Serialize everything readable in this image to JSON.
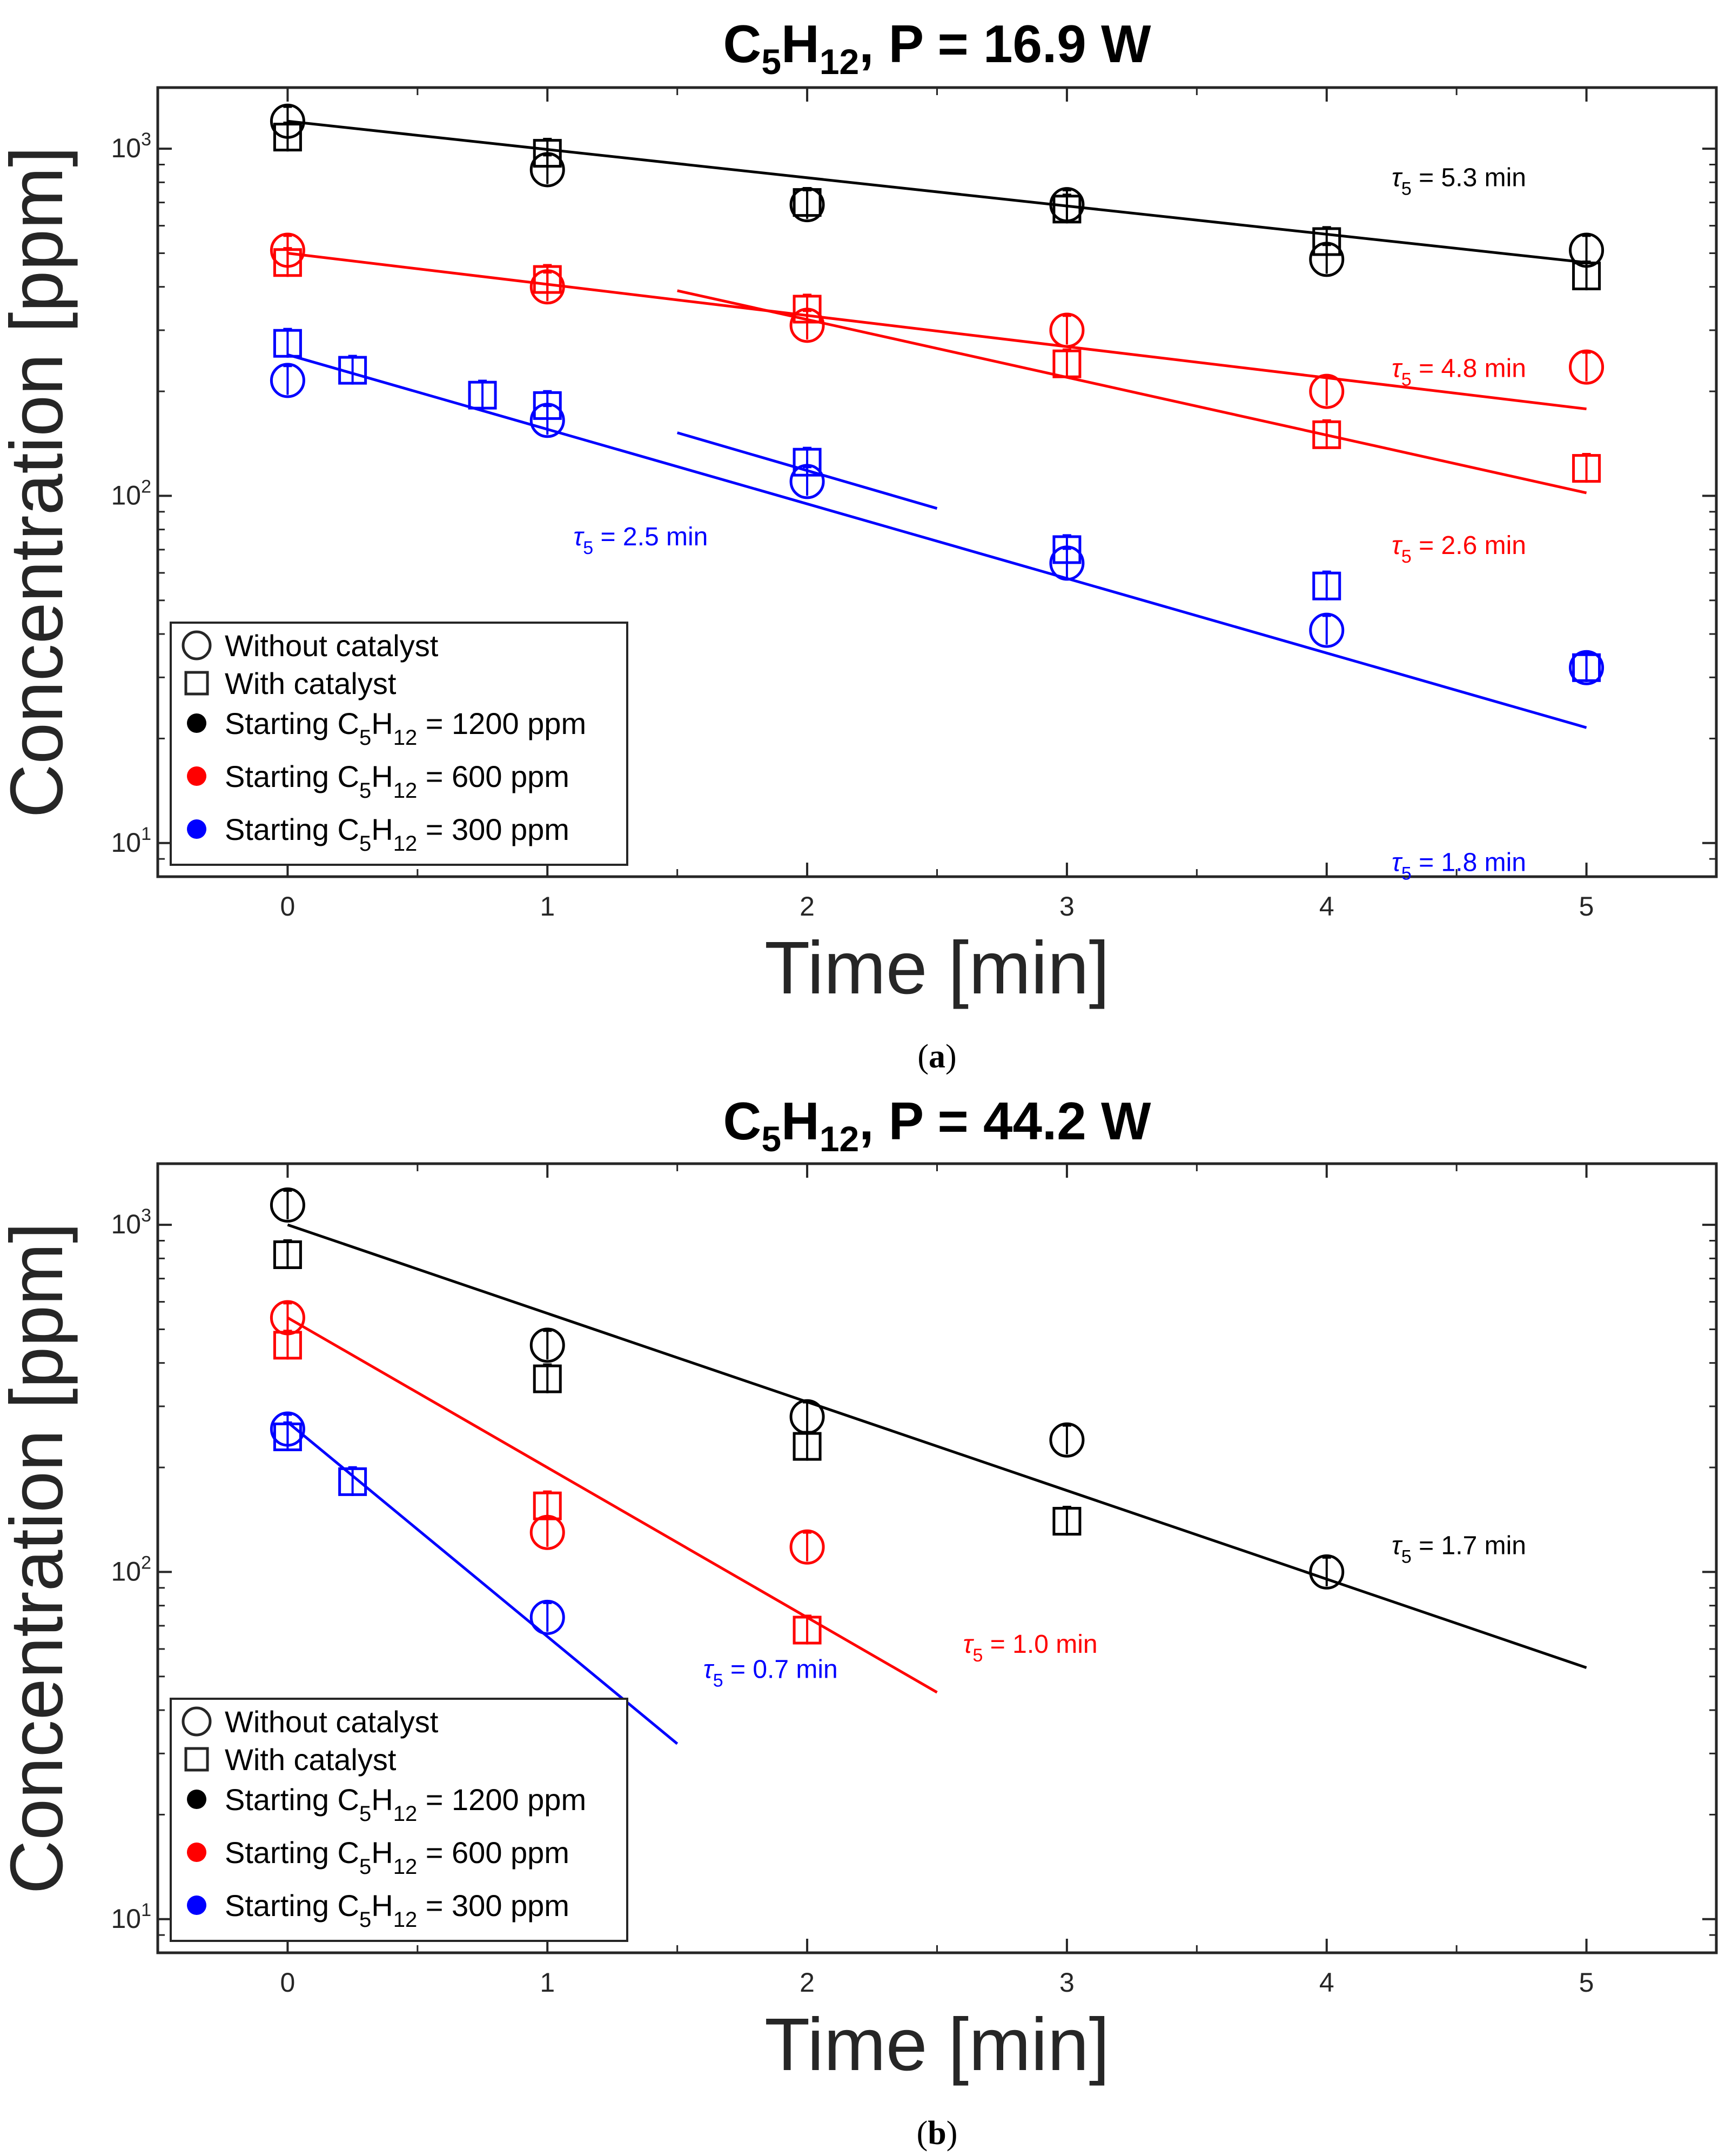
{
  "chart_data": [
    {
      "type": "scatter",
      "title": {
        "species_base": "C",
        "species_sub1": "5",
        "species_mid": "H",
        "species_sub2": "12",
        "rest": ", P = 16.9 W"
      },
      "xlabel": "Time [min]",
      "ylabel": "Concentration [ppm]",
      "xlim": [
        -0.5,
        5.5
      ],
      "ylim": [
        8,
        1500
      ],
      "yscale": "log",
      "xticks": [
        "0",
        "1",
        "2",
        "3",
        "4",
        "5"
      ],
      "yticks": [
        {
          "base": "10",
          "exp": "1",
          "value": 10
        },
        {
          "base": "10",
          "exp": "2",
          "value": 100
        },
        {
          "base": "10",
          "exp": "3",
          "value": 1000
        }
      ],
      "caption": "a",
      "series": [
        {
          "name": "Without catalyst, 1200 ppm",
          "color": "#000000",
          "marker": "circle",
          "x": [
            0,
            1,
            2,
            3,
            4,
            5
          ],
          "y": [
            1200,
            870,
            690,
            690,
            480,
            510
          ]
        },
        {
          "name": "With catalyst, 1200 ppm",
          "color": "#000000",
          "marker": "square",
          "x": [
            0,
            1,
            2,
            3,
            4,
            5
          ],
          "y": [
            1080,
            970,
            700,
            670,
            540,
            430
          ]
        },
        {
          "name": "Without catalyst, 600 ppm",
          "color": "#ff0000",
          "marker": "circle",
          "x": [
            0,
            1,
            2,
            3,
            4,
            5
          ],
          "y": [
            510,
            400,
            310,
            300,
            200,
            235
          ]
        },
        {
          "name": "With catalyst, 600 ppm",
          "color": "#ff0000",
          "marker": "square",
          "x": [
            0,
            1,
            2,
            3,
            4,
            5
          ],
          "y": [
            470,
            420,
            345,
            240,
            150,
            120
          ]
        },
        {
          "name": "Without catalyst, 300 ppm",
          "color": "#0000ff",
          "marker": "circle",
          "x": [
            0,
            1,
            2,
            3,
            4,
            5
          ],
          "y": [
            215,
            165,
            110,
            64,
            41,
            32
          ]
        },
        {
          "name": "With catalyst, 300 ppm",
          "color": "#0000ff",
          "marker": "square",
          "x": [
            0,
            0.25,
            0.75,
            1,
            2,
            3,
            4,
            5
          ],
          "y": [
            275,
            230,
            195,
            182,
            125,
            70,
            55,
            32
          ]
        }
      ],
      "fits": [
        {
          "color": "#000000",
          "x": [
            0,
            5
          ],
          "y": [
            1200,
            470
          ]
        },
        {
          "color": "#ff0000",
          "x": [
            0,
            5
          ],
          "y": [
            500,
            178
          ]
        },
        {
          "color": "#ff0000",
          "x": [
            1.5,
            5
          ],
          "y": [
            390,
            102
          ]
        },
        {
          "color": "#0000ff",
          "x": [
            0,
            5
          ],
          "y": [
            255,
            21.5
          ]
        },
        {
          "color": "#0000ff",
          "x": [
            1.5,
            2.5
          ],
          "y": [
            152,
            92
          ]
        }
      ],
      "annotations": [
        {
          "symbol": "τ",
          "sub": "5",
          "text": " = 5.3 min",
          "color": "#000000",
          "x": 4.25,
          "y": 780
        },
        {
          "symbol": "τ",
          "sub": "5",
          "text": " = 4.8 min",
          "color": "#ff0000",
          "x": 4.25,
          "y": 220
        },
        {
          "symbol": "τ",
          "sub": "5",
          "text": " = 2.6 min",
          "color": "#ff0000",
          "x": 4.25,
          "y": 68
        },
        {
          "symbol": "τ",
          "sub": "5",
          "text": " = 2.5 min",
          "color": "#0000ff",
          "x": 1.1,
          "y": 72
        },
        {
          "symbol": "τ",
          "sub": "5",
          "text": " = 1.8 min",
          "color": "#0000ff",
          "x": 4.25,
          "y": 8.3
        }
      ]
    },
    {
      "type": "scatter",
      "title": {
        "species_base": "C",
        "species_sub1": "5",
        "species_mid": "H",
        "species_sub2": "12",
        "rest": ", P = 44.2 W"
      },
      "xlabel": "Time [min]",
      "ylabel": "Concentration [ppm]",
      "xlim": [
        -0.5,
        5.5
      ],
      "ylim": [
        8,
        1500
      ],
      "yscale": "log",
      "xticks": [
        "0",
        "1",
        "2",
        "3",
        "4",
        "5"
      ],
      "yticks": [
        {
          "base": "10",
          "exp": "1",
          "value": 10
        },
        {
          "base": "10",
          "exp": "2",
          "value": 100
        },
        {
          "base": "10",
          "exp": "3",
          "value": 1000
        }
      ],
      "caption": "b",
      "series": [
        {
          "name": "Without catalyst, 1200 ppm",
          "color": "#000000",
          "marker": "circle",
          "x": [
            0,
            1,
            2,
            3,
            4
          ],
          "y": [
            1140,
            450,
            280,
            240,
            100
          ]
        },
        {
          "name": "With catalyst, 1200 ppm",
          "color": "#000000",
          "marker": "square",
          "x": [
            0,
            1,
            2,
            3
          ],
          "y": [
            820,
            360,
            230,
            140
          ]
        },
        {
          "name": "Without catalyst, 600 ppm",
          "color": "#ff0000",
          "marker": "circle",
          "x": [
            0,
            1,
            2
          ],
          "y": [
            540,
            130,
            118
          ]
        },
        {
          "name": "With catalyst, 600 ppm",
          "color": "#ff0000",
          "marker": "square",
          "x": [
            0,
            1,
            2
          ],
          "y": [
            450,
            155,
            68
          ]
        },
        {
          "name": "Without catalyst, 300 ppm",
          "color": "#0000ff",
          "marker": "circle",
          "x": [
            0,
            1
          ],
          "y": [
            258,
            74
          ]
        },
        {
          "name": "With catalyst, 300 ppm",
          "color": "#0000ff",
          "marker": "square",
          "x": [
            0,
            0.25
          ],
          "y": [
            245,
            182
          ]
        }
      ],
      "fits": [
        {
          "color": "#000000",
          "x": [
            0,
            5
          ],
          "y": [
            1000,
            53
          ]
        },
        {
          "color": "#ff0000",
          "x": [
            0,
            2.5
          ],
          "y": [
            540,
            45
          ]
        },
        {
          "color": "#0000ff",
          "x": [
            0,
            1.5
          ],
          "y": [
            270,
            32
          ]
        }
      ],
      "annotations": [
        {
          "symbol": "τ",
          "sub": "5",
          "text": " = 1.7 min",
          "color": "#000000",
          "x": 4.25,
          "y": 2.5
        },
        {
          "symbol": "τ",
          "sub": "5",
          "text": " = 1.0 min",
          "color": "#ff0000",
          "x": 2.6,
          "y": 1.3
        },
        {
          "symbol": "τ",
          "sub": "5",
          "text": " = 0.7 min",
          "color": "#0000ff",
          "x": 1.6,
          "y": 1.1
        }
      ]
    }
  ],
  "legend": {
    "items": [
      {
        "kind": "open-circle",
        "color": "#000000",
        "text": "Without catalyst"
      },
      {
        "kind": "open-square",
        "color": "#000000",
        "text": "With catalyst"
      },
      {
        "kind": "dot",
        "color": "#000000",
        "pre": "Starting C",
        "sub1": "5",
        "mid": "H",
        "sub2": "12",
        "post": " = 1200 ppm"
      },
      {
        "kind": "dot",
        "color": "#ff0000",
        "pre": "Starting C",
        "sub1": "5",
        "mid": "H",
        "sub2": "12",
        "post": " = 600 ppm"
      },
      {
        "kind": "dot",
        "color": "#0000ff",
        "pre": "Starting C",
        "sub1": "5",
        "mid": "H",
        "sub2": "12",
        "post": " = 300 ppm"
      }
    ]
  }
}
